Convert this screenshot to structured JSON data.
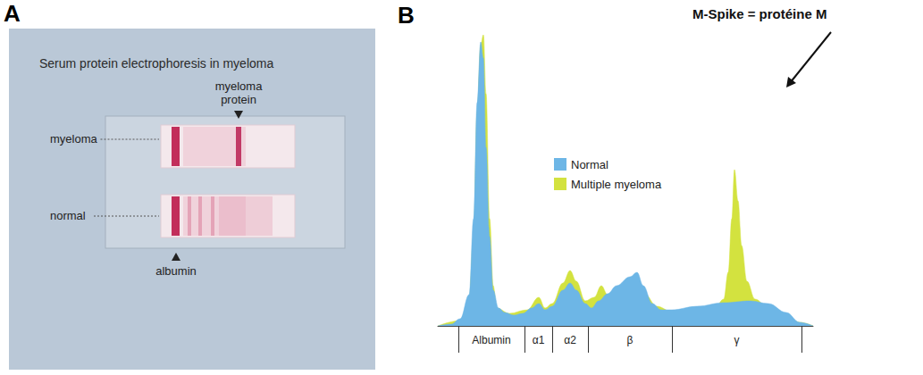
{
  "panel_a": {
    "letter": "A",
    "title": "Serum protein electrophoresis in myeloma",
    "lanes": [
      "myeloma",
      "normal"
    ],
    "top_label": "myeloma protein",
    "bottom_label": "albumin"
  },
  "chart_data": {
    "letter": "B",
    "type": "area",
    "annotation": "M-Spike = protéine M",
    "xlim": [
      0,
      420
    ],
    "ylim": [
      0,
      330
    ],
    "boundaries": [
      23,
      97,
      128,
      168,
      262,
      407
    ],
    "regions": [
      "Albumin",
      "α1",
      "α2",
      "β",
      "γ"
    ],
    "legend": "center",
    "series": [
      {
        "name": "Normal",
        "color": "#6db6e6",
        "x": [
          0,
          15,
          25,
          35,
          40,
          44,
          48,
          51,
          54,
          58,
          62,
          68,
          75,
          85,
          95,
          105,
          113,
          120,
          128,
          140,
          148,
          155,
          165,
          172,
          180,
          190,
          200,
          215,
          223,
          230,
          240,
          250,
          262,
          290,
          320,
          350,
          370,
          390,
          405,
          420
        ],
        "values": [
          0,
          2,
          8,
          35,
          120,
          250,
          318,
          300,
          200,
          100,
          40,
          20,
          15,
          12,
          14,
          20,
          25,
          18,
          22,
          40,
          48,
          40,
          25,
          20,
          28,
          36,
          45,
          55,
          60,
          45,
          25,
          18,
          18,
          22,
          26,
          28,
          25,
          15,
          4,
          0
        ]
      },
      {
        "name": "Multiple myeloma",
        "color": "#d3e23f",
        "x": [
          0,
          25,
          35,
          40,
          44,
          48,
          51,
          54,
          58,
          62,
          66,
          80,
          100,
          113,
          120,
          128,
          140,
          148,
          155,
          165,
          175,
          183,
          190,
          200,
          215,
          223,
          232,
          245,
          262,
          290,
          310,
          320,
          325,
          329,
          332,
          336,
          340,
          346,
          355,
          370,
          390,
          405,
          420
        ],
        "values": [
          0,
          6,
          28,
          100,
          240,
          315,
          326,
          260,
          120,
          45,
          20,
          14,
          18,
          32,
          20,
          25,
          48,
          62,
          50,
          28,
          32,
          45,
          35,
          35,
          45,
          48,
          35,
          22,
          16,
          17,
          20,
          30,
          60,
          120,
          175,
          140,
          90,
          50,
          30,
          20,
          12,
          4,
          0
        ]
      }
    ]
  }
}
